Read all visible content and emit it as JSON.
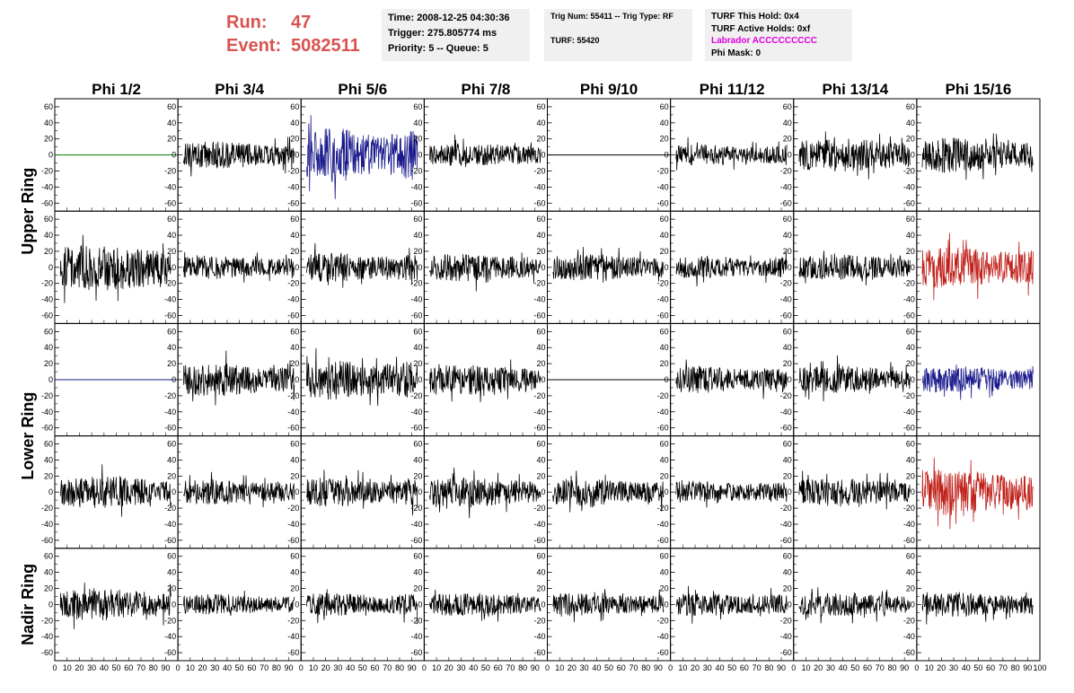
{
  "header": {
    "run_label": "Run:",
    "run_value": "47",
    "event_label": "Event:",
    "event_value": "5082511",
    "time": "Time: 2008-12-25 04:30:36",
    "trigger": "Trigger: 275.805774 ms",
    "priority": "Priority: 5 -- Queue: 5",
    "trig_num": "Trig Num: 55411 -- Trig Type: RF",
    "turf": "TURF: 55420",
    "turf_this_hold": "TURF This Hold: 0x4",
    "turf_active_holds": "TURF Active Holds: 0xf",
    "labrador": "Labrador ACCCCCCCCC",
    "phi_mask": "Phi Mask: 0"
  },
  "colors": {
    "run_red": "#d9534f",
    "labrador_magenta": "#e000e0",
    "info_bg": "#f0f0f0"
  },
  "chart_data": {
    "type": "line",
    "columns": [
      "Phi 1/2",
      "Phi 3/4",
      "Phi 5/6",
      "Phi 7/8",
      "Phi 9/10",
      "Phi 11/12",
      "Phi 13/14",
      "Phi 15/16"
    ],
    "ring_labels": [
      "Upper Ring",
      "Lower Ring",
      "Nadir Ring"
    ],
    "rows": 5,
    "xlim": [
      0,
      100
    ],
    "ylim": [
      -70,
      70
    ],
    "ytick_values": [
      60,
      40,
      20,
      0,
      -20,
      -40,
      -60
    ],
    "ytick_labels": [
      "60",
      "40",
      "20",
      "0",
      "-20",
      "-40",
      "-60"
    ],
    "xtick_values": [
      0,
      10,
      20,
      30,
      40,
      50,
      60,
      70,
      80,
      90,
      100
    ],
    "grid": false,
    "waveforms": [
      [
        {
          "color": "#008000",
          "flat": true,
          "amp": 0
        },
        {
          "color": "#000000",
          "amp": 13
        },
        {
          "color": "#1a1a8c",
          "amp": 26
        },
        {
          "color": "#000000",
          "amp": 11
        },
        {
          "color": "#000000",
          "flat": true,
          "amp": 0
        },
        {
          "color": "#000000",
          "amp": 10
        },
        {
          "color": "#000000",
          "amp": 16
        },
        {
          "color": "#000000",
          "amp": 17
        }
      ],
      [
        {
          "color": "#000000",
          "amp": 22
        },
        {
          "color": "#000000",
          "amp": 11
        },
        {
          "color": "#000000",
          "amp": 14
        },
        {
          "color": "#000000",
          "amp": 13
        },
        {
          "color": "#000000",
          "amp": 13
        },
        {
          "color": "#000000",
          "amp": 11
        },
        {
          "color": "#000000",
          "amp": 12
        },
        {
          "color": "#c0201a",
          "amp": 20
        }
      ],
      [
        {
          "color": "#1a1a8c",
          "flat": true,
          "amp": 0
        },
        {
          "color": "#000000",
          "amp": 16
        },
        {
          "color": "#000000",
          "amp": 19
        },
        {
          "color": "#000000",
          "amp": 14
        },
        {
          "color": "#000000",
          "flat": true,
          "amp": 0
        },
        {
          "color": "#000000",
          "amp": 13
        },
        {
          "color": "#000000",
          "amp": 13
        },
        {
          "color": "#1a1a8c",
          "amp": 13
        }
      ],
      [
        {
          "color": "#000000",
          "amp": 15
        },
        {
          "color": "#000000",
          "amp": 12
        },
        {
          "color": "#000000",
          "amp": 14
        },
        {
          "color": "#000000",
          "amp": 14
        },
        {
          "color": "#000000",
          "amp": 13
        },
        {
          "color": "#000000",
          "amp": 11
        },
        {
          "color": "#000000",
          "amp": 13
        },
        {
          "color": "#c0201a",
          "amp": 22
        }
      ],
      [
        {
          "color": "#000000",
          "amp": 15
        },
        {
          "color": "#000000",
          "amp": 10
        },
        {
          "color": "#000000",
          "amp": 11
        },
        {
          "color": "#000000",
          "amp": 11
        },
        {
          "color": "#000000",
          "amp": 11
        },
        {
          "color": "#000000",
          "amp": 11
        },
        {
          "color": "#000000",
          "amp": 11
        },
        {
          "color": "#000000",
          "amp": 12
        }
      ]
    ]
  }
}
